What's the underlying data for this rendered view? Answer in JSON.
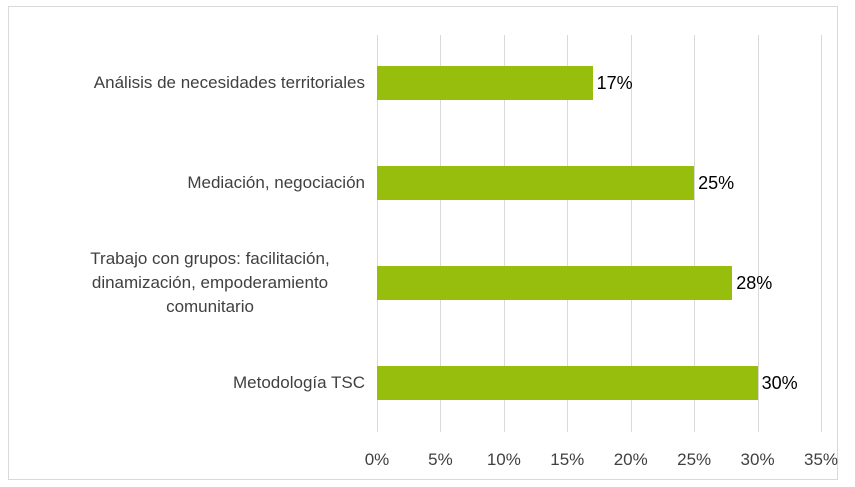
{
  "chart_data": {
    "type": "barh",
    "categories": [
      "Análisis de necesidades territoriales",
      "Mediación, negociación",
      "Trabajo con grupos: facilitación, dinamización, empoderamiento comunitario",
      "Metodología TSC"
    ],
    "values": [
      17,
      25,
      28,
      30
    ],
    "value_labels": [
      "17%",
      "25%",
      "28%",
      "30%"
    ],
    "color": "#97be0d",
    "xlim": [
      0,
      35
    ],
    "xticks": [
      {
        "value": 0,
        "label": "0%"
      },
      {
        "value": 5,
        "label": "5%"
      },
      {
        "value": 10,
        "label": "10%"
      },
      {
        "value": 15,
        "label": "15%"
      },
      {
        "value": 20,
        "label": "20%"
      },
      {
        "value": 25,
        "label": "25%"
      },
      {
        "value": 30,
        "label": "30%"
      },
      {
        "value": 35,
        "label": "35%"
      }
    ],
    "grid": true
  }
}
